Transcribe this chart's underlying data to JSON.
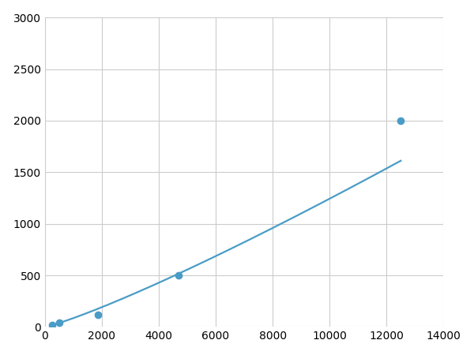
{
  "x_data": [
    250,
    500,
    1875,
    4688,
    12500
  ],
  "y_data": [
    20,
    40,
    120,
    500,
    2000
  ],
  "line_color": "#4a9cc7",
  "marker_color": "#4a9cc7",
  "marker_size": 6,
  "marker_style": "o",
  "line_width": 1.6,
  "xlim": [
    0,
    14000
  ],
  "ylim": [
    0,
    3000
  ],
  "xticks": [
    0,
    2000,
    4000,
    6000,
    8000,
    10000,
    12000,
    14000
  ],
  "yticks": [
    0,
    500,
    1000,
    1500,
    2000,
    2500,
    3000
  ],
  "grid": true,
  "grid_color": "#cccccc",
  "grid_linewidth": 0.8,
  "background_color": "#ffffff",
  "tick_fontsize": 10,
  "spine_visible": false
}
